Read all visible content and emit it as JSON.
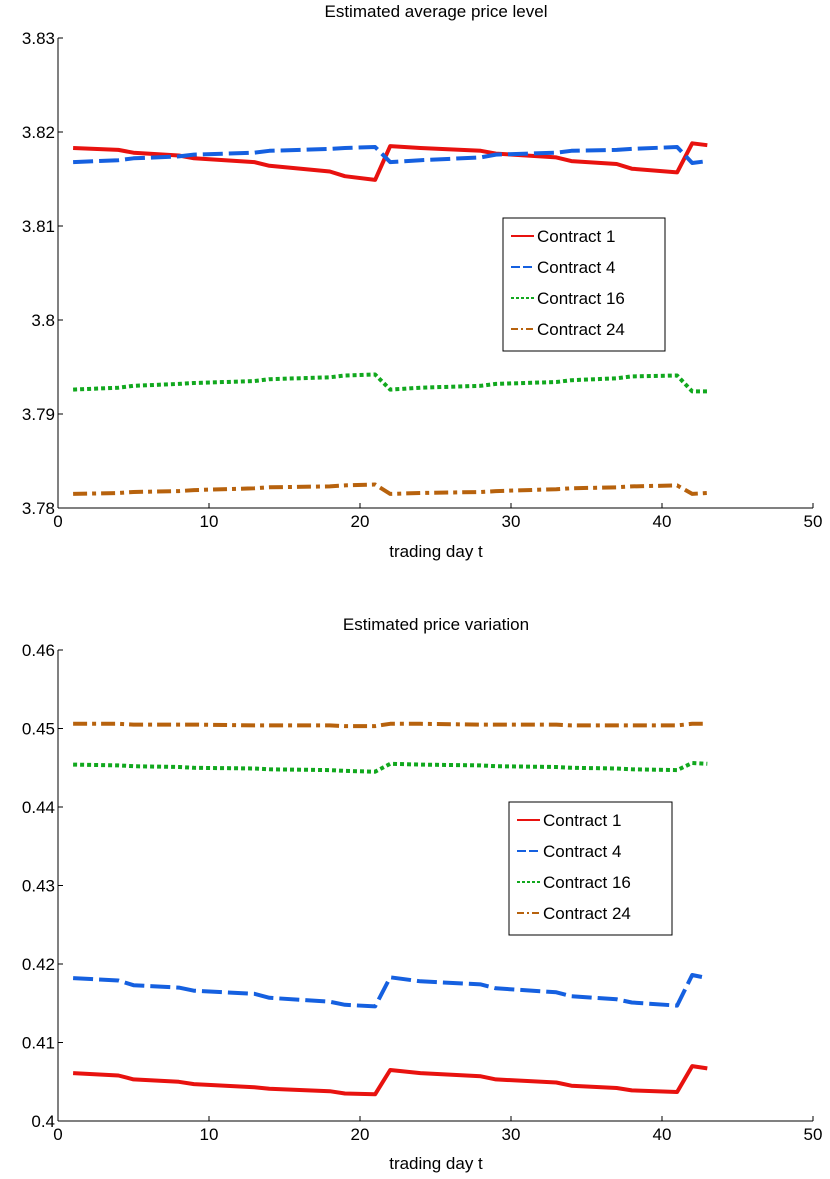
{
  "chart_data": [
    {
      "type": "line",
      "title": "Estimated average price level",
      "xlabel": "trading day t",
      "ylabel": "",
      "xlim": [
        0,
        50
      ],
      "ylim": [
        3.78,
        3.83
      ],
      "xticks": [
        "0",
        "10",
        "20",
        "30",
        "40",
        "50"
      ],
      "yticks": [
        "3.78",
        "3.79",
        "3.8",
        "3.81",
        "3.82",
        "3.83"
      ],
      "grid": false,
      "legend_position": "center-right",
      "series": [
        {
          "name": "Contract 1",
          "color": "#e8120f",
          "dash": "solid",
          "points": [
            [
              1,
              3.8183
            ],
            [
              4,
              3.8181
            ],
            [
              5,
              3.8178
            ],
            [
              8,
              3.8175
            ],
            [
              9,
              3.8172
            ],
            [
              13,
              3.8168
            ],
            [
              14,
              3.8164
            ],
            [
              18,
              3.8158
            ],
            [
              19,
              3.8153
            ],
            [
              21,
              3.8149
            ],
            [
              22,
              3.8185
            ],
            [
              24,
              3.8183
            ],
            [
              28,
              3.818
            ],
            [
              29,
              3.8177
            ],
            [
              33,
              3.8173
            ],
            [
              34,
              3.8169
            ],
            [
              37,
              3.8166
            ],
            [
              38,
              3.8161
            ],
            [
              41,
              3.8157
            ],
            [
              42,
              3.8188
            ],
            [
              43,
              3.8186
            ]
          ]
        },
        {
          "name": "Contract 4",
          "color": "#1560e0",
          "dash": "dashed",
          "points": [
            [
              1,
              3.8168
            ],
            [
              4,
              3.817
            ],
            [
              5,
              3.8172
            ],
            [
              8,
              3.8174
            ],
            [
              9,
              3.8176
            ],
            [
              13,
              3.8178
            ],
            [
              14,
              3.818
            ],
            [
              18,
              3.8182
            ],
            [
              19,
              3.8183
            ],
            [
              21,
              3.8184
            ],
            [
              22,
              3.8168
            ],
            [
              24,
              3.817
            ],
            [
              28,
              3.8173
            ],
            [
              29,
              3.8176
            ],
            [
              33,
              3.8178
            ],
            [
              34,
              3.818
            ],
            [
              37,
              3.8181
            ],
            [
              38,
              3.8182
            ],
            [
              41,
              3.8184
            ],
            [
              42,
              3.8167
            ],
            [
              43,
              3.8169
            ]
          ]
        },
        {
          "name": "Contract 16",
          "color": "#11a81e",
          "dash": "dotted",
          "points": [
            [
              1,
              3.7926
            ],
            [
              4,
              3.7928
            ],
            [
              5,
              3.793
            ],
            [
              8,
              3.7932
            ],
            [
              9,
              3.7933
            ],
            [
              13,
              3.7935
            ],
            [
              14,
              3.7937
            ],
            [
              18,
              3.7939
            ],
            [
              19,
              3.7941
            ],
            [
              21,
              3.7942
            ],
            [
              22,
              3.7926
            ],
            [
              24,
              3.7928
            ],
            [
              28,
              3.793
            ],
            [
              29,
              3.7932
            ],
            [
              33,
              3.7934
            ],
            [
              34,
              3.7936
            ],
            [
              37,
              3.7938
            ],
            [
              38,
              3.794
            ],
            [
              41,
              3.7941
            ],
            [
              42,
              3.7924
            ],
            [
              43,
              3.7924
            ]
          ]
        },
        {
          "name": "Contract 24",
          "color": "#b7620d",
          "dash": "dashdot",
          "points": [
            [
              1,
              3.7815
            ],
            [
              4,
              3.7816
            ],
            [
              5,
              3.7817
            ],
            [
              8,
              3.7818
            ],
            [
              9,
              3.7819
            ],
            [
              13,
              3.7821
            ],
            [
              14,
              3.7822
            ],
            [
              18,
              3.7823
            ],
            [
              19,
              3.7824
            ],
            [
              21,
              3.7825
            ],
            [
              22,
              3.7815
            ],
            [
              24,
              3.7816
            ],
            [
              28,
              3.7817
            ],
            [
              29,
              3.7818
            ],
            [
              33,
              3.782
            ],
            [
              34,
              3.7821
            ],
            [
              37,
              3.7822
            ],
            [
              38,
              3.7823
            ],
            [
              41,
              3.7824
            ],
            [
              42,
              3.7815
            ],
            [
              43,
              3.7816
            ]
          ]
        }
      ]
    },
    {
      "type": "line",
      "title": "Estimated price variation",
      "xlabel": "trading day t",
      "ylabel": "",
      "xlim": [
        0,
        50
      ],
      "ylim": [
        0.4,
        0.46
      ],
      "xticks": [
        "0",
        "10",
        "20",
        "30",
        "40",
        "50"
      ],
      "yticks": [
        "0.4",
        "0.41",
        "0.42",
        "0.43",
        "0.44",
        "0.45",
        "0.46"
      ],
      "grid": false,
      "legend_position": "center-right",
      "series": [
        {
          "name": "Contract 1",
          "color": "#e8120f",
          "dash": "solid",
          "points": [
            [
              1,
              0.4061
            ],
            [
              4,
              0.4058
            ],
            [
              5,
              0.4053
            ],
            [
              8,
              0.405
            ],
            [
              9,
              0.4047
            ],
            [
              13,
              0.4043
            ],
            [
              14,
              0.4041
            ],
            [
              18,
              0.4038
            ],
            [
              19,
              0.4035
            ],
            [
              21,
              0.4034
            ],
            [
              22,
              0.4065
            ],
            [
              24,
              0.4061
            ],
            [
              28,
              0.4057
            ],
            [
              29,
              0.4053
            ],
            [
              33,
              0.4049
            ],
            [
              34,
              0.4045
            ],
            [
              37,
              0.4042
            ],
            [
              38,
              0.4039
            ],
            [
              41,
              0.4037
            ],
            [
              42,
              0.407
            ],
            [
              43,
              0.4067
            ]
          ]
        },
        {
          "name": "Contract 4",
          "color": "#1560e0",
          "dash": "dashed",
          "points": [
            [
              1,
              0.4182
            ],
            [
              4,
              0.4179
            ],
            [
              5,
              0.4173
            ],
            [
              8,
              0.417
            ],
            [
              9,
              0.4166
            ],
            [
              13,
              0.4162
            ],
            [
              14,
              0.4157
            ],
            [
              18,
              0.4152
            ],
            [
              19,
              0.4148
            ],
            [
              21,
              0.4146
            ],
            [
              22,
              0.4183
            ],
            [
              24,
              0.4178
            ],
            [
              28,
              0.4174
            ],
            [
              29,
              0.4169
            ],
            [
              33,
              0.4164
            ],
            [
              34,
              0.4159
            ],
            [
              37,
              0.4155
            ],
            [
              38,
              0.4151
            ],
            [
              41,
              0.4147
            ],
            [
              42,
              0.4186
            ],
            [
              43,
              0.4182
            ]
          ]
        },
        {
          "name": "Contract 16",
          "color": "#11a81e",
          "dash": "dotted",
          "points": [
            [
              1,
              0.4454
            ],
            [
              4,
              0.4453
            ],
            [
              5,
              0.4452
            ],
            [
              8,
              0.4451
            ],
            [
              9,
              0.445
            ],
            [
              13,
              0.4449
            ],
            [
              14,
              0.4448
            ],
            [
              18,
              0.4447
            ],
            [
              19,
              0.4446
            ],
            [
              21,
              0.4445
            ],
            [
              22,
              0.4455
            ],
            [
              24,
              0.4454
            ],
            [
              28,
              0.4453
            ],
            [
              29,
              0.4452
            ],
            [
              33,
              0.4451
            ],
            [
              34,
              0.445
            ],
            [
              37,
              0.4449
            ],
            [
              38,
              0.4448
            ],
            [
              41,
              0.4447
            ],
            [
              42,
              0.4456
            ],
            [
              43,
              0.4455
            ]
          ]
        },
        {
          "name": "Contract 24",
          "color": "#b7620d",
          "dash": "dashdot",
          "points": [
            [
              1,
              0.4506
            ],
            [
              4,
              0.4506
            ],
            [
              5,
              0.4505
            ],
            [
              8,
              0.4505
            ],
            [
              9,
              0.4505
            ],
            [
              13,
              0.4504
            ],
            [
              14,
              0.4504
            ],
            [
              18,
              0.4504
            ],
            [
              19,
              0.4503
            ],
            [
              21,
              0.4503
            ],
            [
              22,
              0.4506
            ],
            [
              24,
              0.4506
            ],
            [
              28,
              0.4505
            ],
            [
              29,
              0.4505
            ],
            [
              33,
              0.4505
            ],
            [
              34,
              0.4504
            ],
            [
              37,
              0.4504
            ],
            [
              38,
              0.4504
            ],
            [
              41,
              0.4504
            ],
            [
              42,
              0.4506
            ],
            [
              43,
              0.4506
            ]
          ]
        }
      ]
    }
  ]
}
